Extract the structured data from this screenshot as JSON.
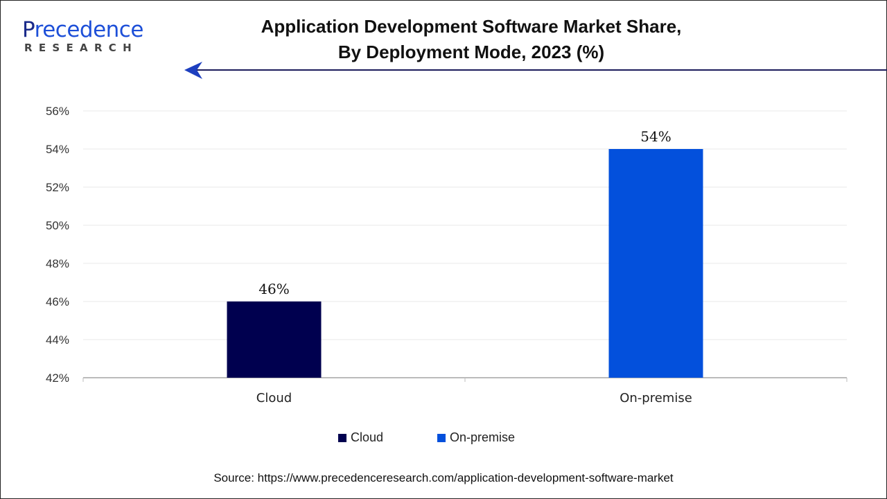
{
  "logo": {
    "text_main_first": "P",
    "text_main_rest": "recedence",
    "text_sub": "RESEARCH"
  },
  "title_line1": "Application Development Software Market Share,",
  "title_line2": "By Deployment Mode, 2023 (%)",
  "colors": {
    "cloud": "#00004f",
    "on_premise": "#0350dc"
  },
  "chart_data": {
    "type": "bar",
    "title": "Application Development Software Market Share, By Deployment Mode, 2023 (%)",
    "categories": [
      "Cloud",
      "On-premise"
    ],
    "values": [
      46,
      54
    ],
    "data_labels": [
      "46%",
      "54%"
    ],
    "ylim": [
      42,
      56
    ],
    "yticks": [
      42,
      44,
      46,
      48,
      50,
      52,
      54,
      56
    ],
    "ytick_labels": [
      "42%",
      "44%",
      "46%",
      "48%",
      "50%",
      "52%",
      "54%",
      "56%"
    ],
    "grid": true,
    "legend": {
      "placement": "bottom",
      "entries": [
        "Cloud",
        "On-premise"
      ]
    }
  },
  "source": "Source: https://www.precedenceresearch.com/application-development-software-market"
}
